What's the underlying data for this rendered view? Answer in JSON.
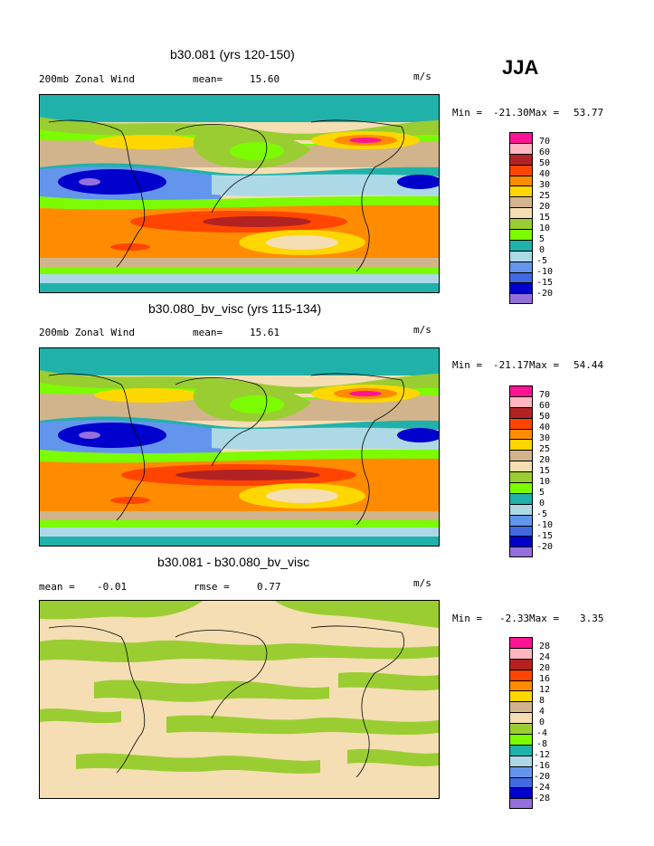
{
  "season": "JJA",
  "units": "m/s",
  "panels": [
    {
      "title": "b30.081 (yrs 120-150)",
      "left_label": "200mb Zonal Wind",
      "mean_label": "mean=",
      "mean_value": "15.60",
      "units": "m/s",
      "min_label": "Min =",
      "min_value": "-21.30",
      "max_label": "Max =",
      "max_value": "53.77"
    },
    {
      "title": "b30.080_bv_visc (yrs 115-134)",
      "left_label": "200mb Zonal Wind",
      "mean_label": "mean=",
      "mean_value": "15.61",
      "units": "m/s",
      "min_label": "Min =",
      "min_value": "-21.17",
      "max_label": "Max =",
      "max_value": "54.44"
    },
    {
      "title": "b30.081 - b30.080_bv_visc",
      "left_label": "mean =",
      "mean_label": "rmse =",
      "left_value": "-0.01",
      "mean_value": "0.77",
      "units": "m/s",
      "min_label": "Min =",
      "min_value": "-2.33",
      "max_label": "Max =",
      "max_value": "3.35"
    }
  ],
  "colorbar_main": {
    "labels": [
      "70",
      "60",
      "50",
      "40",
      "30",
      "25",
      "20",
      "15",
      "10",
      "5",
      "0",
      "-5",
      "-10",
      "-15",
      "-20"
    ],
    "colors": [
      "#ff1493",
      "#ffb6c1",
      "#b22222",
      "#ff4500",
      "#ff8c00",
      "#ffd700",
      "#d2b48c",
      "#f5deb3",
      "#9acd32",
      "#7cfc00",
      "#20b2aa",
      "#add8e6",
      "#6495ed",
      "#4169e1",
      "#0000cd",
      "#9370db"
    ]
  },
  "colorbar_diff": {
    "labels": [
      "28",
      "24",
      "20",
      "16",
      "12",
      "8",
      "4",
      "0",
      "-4",
      "-8",
      "-12",
      "-16",
      "-20",
      "-24",
      "-28"
    ],
    "colors": [
      "#ff1493",
      "#ffb6c1",
      "#b22222",
      "#ff4500",
      "#ff8c00",
      "#ffd700",
      "#d2b48c",
      "#f5deb3",
      "#9acd32",
      "#7cfc00",
      "#20b2aa",
      "#add8e6",
      "#6495ed",
      "#4169e1",
      "#0000cd",
      "#9370db"
    ]
  }
}
